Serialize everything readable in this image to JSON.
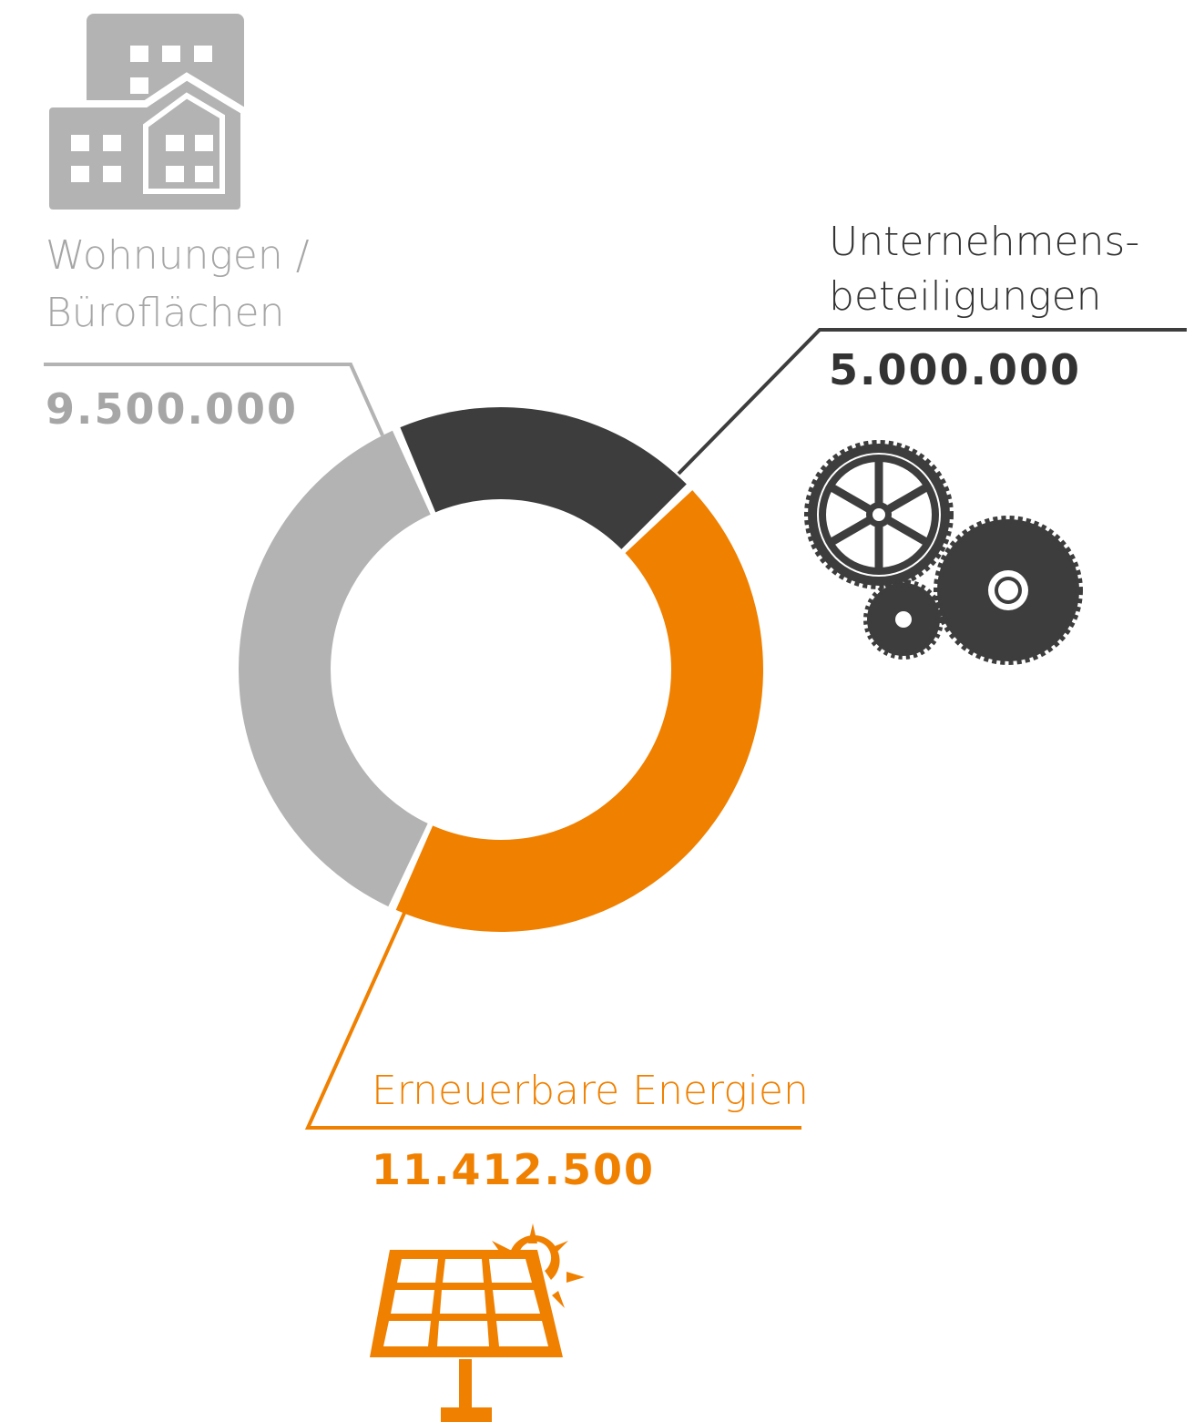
{
  "chart_data": {
    "type": "donut",
    "categories": [
      [
        "Wohnungen /",
        "Büroflächen"
      ],
      [
        "Unternehmens-",
        "beteiligungen"
      ],
      [
        "Erneuerbare Energien"
      ]
    ],
    "values": [
      9500000,
      5000000,
      11412500
    ],
    "value_labels": [
      "9.500.000",
      "5.000.000",
      "11.412.500"
    ],
    "colors": [
      "#b3b3b3",
      "#3d3d3d",
      "#f08000"
    ]
  }
}
